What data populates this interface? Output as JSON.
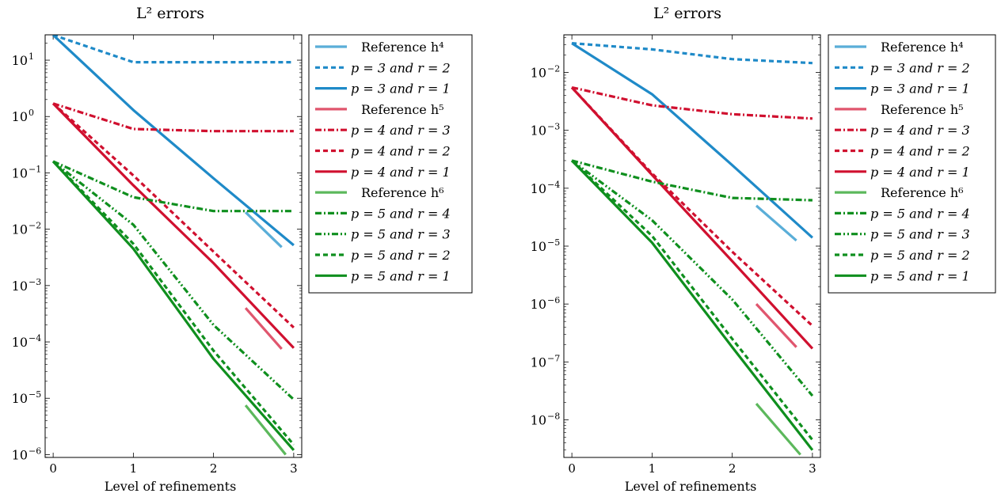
{
  "colors": {
    "blue_ref": "#5aaed8",
    "blue": "#1f8ac8",
    "red_ref": "#e0566e",
    "red": "#d0102f",
    "green_ref": "#5cb85c",
    "green": "#0f8f1e"
  },
  "legend": [
    {
      "label": "Reference h⁴",
      "color": "blue_ref",
      "dash": "solid-thin"
    },
    {
      "label": "p = 3 and r = 2",
      "color": "blue",
      "dash": "dash"
    },
    {
      "label": "p = 3 and r = 1",
      "color": "blue",
      "dash": "solid"
    },
    {
      "label": "Reference h⁵",
      "color": "red_ref",
      "dash": "solid-thin"
    },
    {
      "label": "p = 4 and r = 3",
      "color": "red",
      "dash": "dashdot"
    },
    {
      "label": "p = 4 and r = 2",
      "color": "red",
      "dash": "dash"
    },
    {
      "label": "p = 4 and r = 1",
      "color": "red",
      "dash": "solid"
    },
    {
      "label": "Reference h⁶",
      "color": "green_ref",
      "dash": "solid-thin"
    },
    {
      "label": "p = 5 and r = 4",
      "color": "green",
      "dash": "dashdot"
    },
    {
      "label": "p = 5 and r = 3",
      "color": "green",
      "dash": "dashdotdot"
    },
    {
      "label": "p = 5 and r = 2",
      "color": "green",
      "dash": "dash"
    },
    {
      "label": "p = 5 and r = 1",
      "color": "green",
      "dash": "solid"
    }
  ],
  "chart_data": [
    {
      "type": "line",
      "title": "L² errors",
      "xlabel": "Level of refinements",
      "ylabel": "",
      "yscale": "log",
      "x": [
        0,
        1,
        2,
        3
      ],
      "xticks": [
        "0",
        "1",
        "2",
        "3"
      ],
      "yticks": [
        {
          "exp": 1,
          "label": "10"
        },
        {
          "exp": 0,
          "label": "10"
        },
        {
          "exp": -1,
          "label": "10"
        },
        {
          "exp": -2,
          "label": "10"
        },
        {
          "exp": -3,
          "label": "10"
        },
        {
          "exp": -4,
          "label": "10"
        },
        {
          "exp": -5,
          "label": "10"
        },
        {
          "exp": -6,
          "label": "10"
        }
      ],
      "xlim": [
        -0.1,
        3.1
      ],
      "ylim_exp": [
        -6.05,
        1.45
      ],
      "legend_position": "outside-right",
      "series": [
        {
          "name": "p = 3 and r = 2",
          "color": "blue",
          "dash": "dash",
          "x": [
            0,
            1,
            2,
            3
          ],
          "y": [
            28,
            9.2,
            9.2,
            9.2
          ]
        },
        {
          "name": "p = 3 and r = 1",
          "color": "blue",
          "dash": "solid",
          "x": [
            0,
            1,
            2,
            3
          ],
          "y": [
            28,
            1.3,
            0.08,
            0.0052
          ]
        },
        {
          "name": "p = 4 and r = 3",
          "color": "red",
          "dash": "dashdot",
          "x": [
            0,
            1,
            2,
            3
          ],
          "y": [
            1.7,
            0.6,
            0.55,
            0.55
          ]
        },
        {
          "name": "p = 4 and r = 2",
          "color": "red",
          "dash": "dash",
          "x": [
            0,
            1,
            2,
            3
          ],
          "y": [
            1.7,
            0.09,
            0.004,
            0.00018
          ]
        },
        {
          "name": "p = 4 and r = 1",
          "color": "red",
          "dash": "solid",
          "x": [
            0,
            1,
            2,
            3
          ],
          "y": [
            1.7,
            0.06,
            0.0025,
            7.8e-05
          ]
        },
        {
          "name": "p = 5 and r = 4",
          "color": "green",
          "dash": "dashdot",
          "x": [
            0,
            1,
            2,
            3
          ],
          "y": [
            0.16,
            0.037,
            0.021,
            0.021
          ]
        },
        {
          "name": "p = 5 and r = 3",
          "color": "green",
          "dash": "dashdotdot",
          "x": [
            0,
            1,
            2,
            3
          ],
          "y": [
            0.16,
            0.012,
            0.0002,
            9.5e-06
          ]
        },
        {
          "name": "p = 5 and r = 2",
          "color": "green",
          "dash": "dash",
          "x": [
            0,
            1,
            2,
            3
          ],
          "y": [
            0.16,
            0.0055,
            7e-05,
            1.5e-06
          ]
        },
        {
          "name": "p = 5 and r = 1",
          "color": "green",
          "dash": "solid",
          "x": [
            0,
            1,
            2,
            3
          ],
          "y": [
            0.16,
            0.0045,
            5e-05,
            1.2e-06
          ]
        }
      ],
      "references": [
        {
          "name": "Reference h⁴",
          "color": "blue_ref",
          "x": [
            2.4,
            2.85
          ],
          "y": [
            0.02,
            0.0048
          ]
        },
        {
          "name": "Reference h⁵",
          "color": "red_ref",
          "x": [
            2.4,
            2.85
          ],
          "y": [
            0.0004,
            7.5e-05
          ]
        },
        {
          "name": "Reference h⁶",
          "color": "green_ref",
          "x": [
            2.4,
            2.9
          ],
          "y": [
            7.5e-06,
            1e-06
          ]
        }
      ]
    },
    {
      "type": "line",
      "title": "L² errors",
      "xlabel": "Level of refinements",
      "ylabel": "",
      "yscale": "log",
      "x": [
        0,
        1,
        2,
        3
      ],
      "xticks": [
        "0",
        "1",
        "2",
        "3"
      ],
      "yticks": [
        {
          "exp": -2,
          "label": "10"
        },
        {
          "exp": -3,
          "label": "10"
        },
        {
          "exp": -4,
          "label": "10"
        },
        {
          "exp": -5,
          "label": "10"
        },
        {
          "exp": -6,
          "label": "10"
        },
        {
          "exp": -7,
          "label": "10"
        },
        {
          "exp": -8,
          "label": "10"
        }
      ],
      "xlim": [
        -0.1,
        3.1
      ],
      "ylim_exp": [
        -8.65,
        -1.35
      ],
      "legend_position": "outside-right",
      "series": [
        {
          "name": "p = 3 and r = 2",
          "color": "blue",
          "dash": "dash",
          "x": [
            0,
            1,
            2,
            3
          ],
          "y": [
            0.032,
            0.025,
            0.017,
            0.0145
          ]
        },
        {
          "name": "p = 3 and r = 1",
          "color": "blue",
          "dash": "solid",
          "x": [
            0,
            1,
            2,
            3
          ],
          "y": [
            0.032,
            0.0042,
            0.00025,
            1.4e-05
          ]
        },
        {
          "name": "p = 4 and r = 3",
          "color": "red",
          "dash": "dashdot",
          "x": [
            0,
            1,
            2,
            3
          ],
          "y": [
            0.0055,
            0.0027,
            0.0019,
            0.0016
          ]
        },
        {
          "name": "p = 4 and r = 2",
          "color": "red",
          "dash": "dash",
          "x": [
            0,
            1,
            2,
            3
          ],
          "y": [
            0.0055,
            0.00018,
            8e-06,
            4.2e-07
          ]
        },
        {
          "name": "p = 4 and r = 1",
          "color": "red",
          "dash": "solid",
          "x": [
            0,
            1,
            2,
            3
          ],
          "y": [
            0.0055,
            0.00017,
            5.5e-06,
            1.7e-07
          ]
        },
        {
          "name": "p = 5 and r = 4",
          "color": "green",
          "dash": "dashdot",
          "x": [
            0,
            1,
            2,
            3
          ],
          "y": [
            0.0003,
            0.00013,
            6.8e-05,
            6.2e-05
          ]
        },
        {
          "name": "p = 5 and r = 3",
          "color": "green",
          "dash": "dashdotdot",
          "x": [
            0,
            1,
            2,
            3
          ],
          "y": [
            0.0003,
            2.8e-05,
            1.2e-06,
            2.6e-08
          ]
        },
        {
          "name": "p = 5 and r = 2",
          "color": "green",
          "dash": "dash",
          "x": [
            0,
            1,
            2,
            3
          ],
          "y": [
            0.0003,
            1.5e-05,
            2.5e-07,
            4.5e-09
          ]
        },
        {
          "name": "p = 5 and r = 1",
          "color": "green",
          "dash": "solid",
          "x": [
            0,
            1,
            2,
            3
          ],
          "y": [
            0.0003,
            1.15e-05,
            1.8e-07,
            3e-09
          ]
        }
      ],
      "references": [
        {
          "name": "Reference h⁴",
          "color": "blue_ref",
          "x": [
            2.3,
            2.8
          ],
          "y": [
            5e-05,
            1.25e-05
          ]
        },
        {
          "name": "Reference h⁵",
          "color": "red_ref",
          "x": [
            2.3,
            2.8
          ],
          "y": [
            1e-06,
            1.8e-07
          ]
        },
        {
          "name": "Reference h⁶",
          "color": "green_ref",
          "x": [
            2.3,
            2.85
          ],
          "y": [
            1.9e-08,
            2.5e-09
          ]
        }
      ]
    }
  ]
}
